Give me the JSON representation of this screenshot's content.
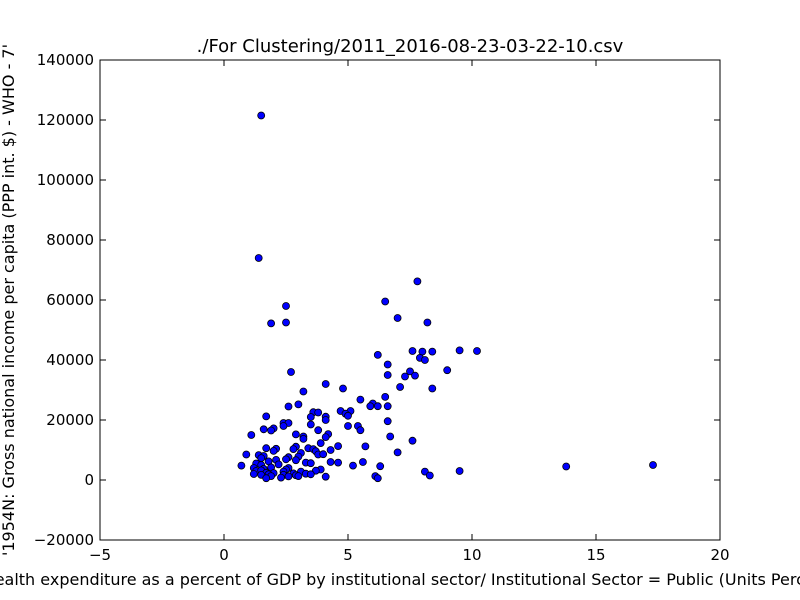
{
  "chart_data": {
    "type": "scatter",
    "title": "./For Clustering/2011_2016-08-23-03-22-10.csv",
    "xlabel": "Health expenditure as a percent of GDP by institutional sector/ Institutional Sector = Public (Units Percent)",
    "ylabel": "'1954N: Gross national income per capita (PPP int. $) - WHO - 7'",
    "xlim": [
      -5,
      20
    ],
    "ylim": [
      -20000,
      140000
    ],
    "xticks": [
      "−5",
      "0",
      "5",
      "10",
      "15",
      "20"
    ],
    "yticks": [
      "−20000",
      "0",
      "20000",
      "40000",
      "60000",
      "80000",
      "100000",
      "120000",
      "140000"
    ],
    "grid": false,
    "marker_color": "#0000ff",
    "points": [
      [
        1.5,
        121500
      ],
      [
        1.4,
        74000
      ],
      [
        7.8,
        66200
      ],
      [
        6.5,
        59500
      ],
      [
        2.5,
        58000
      ],
      [
        7.0,
        54000
      ],
      [
        8.2,
        52500
      ],
      [
        1.9,
        52200
      ],
      [
        2.5,
        52500
      ],
      [
        9.5,
        43200
      ],
      [
        10.2,
        43000
      ],
      [
        7.6,
        43000
      ],
      [
        8.0,
        42800
      ],
      [
        8.4,
        42800
      ],
      [
        6.2,
        41700
      ],
      [
        7.9,
        40700
      ],
      [
        8.1,
        40000
      ],
      [
        6.6,
        38500
      ],
      [
        9.0,
        36600
      ],
      [
        7.5,
        36200
      ],
      [
        2.7,
        36000
      ],
      [
        6.6,
        35000
      ],
      [
        7.3,
        34500
      ],
      [
        7.7,
        34800
      ],
      [
        4.1,
        32000
      ],
      [
        7.1,
        31000
      ],
      [
        8.4,
        30500
      ],
      [
        4.8,
        30500
      ],
      [
        3.2,
        29500
      ],
      [
        5.5,
        26800
      ],
      [
        6.0,
        25500
      ],
      [
        3.0,
        25200
      ],
      [
        6.2,
        24600
      ],
      [
        6.6,
        24600
      ],
      [
        2.6,
        24500
      ],
      [
        5.9,
        24600
      ],
      [
        6.5,
        27700
      ],
      [
        3.6,
        22600
      ],
      [
        3.8,
        22500
      ],
      [
        4.7,
        23000
      ],
      [
        5.1,
        23000
      ],
      [
        4.9,
        22100
      ],
      [
        5.0,
        21400
      ],
      [
        1.7,
        21200
      ],
      [
        3.5,
        21000
      ],
      [
        4.1,
        21100
      ],
      [
        4.1,
        20000
      ],
      [
        6.6,
        19600
      ],
      [
        2.4,
        19000
      ],
      [
        2.6,
        19000
      ],
      [
        3.5,
        18500
      ],
      [
        2.4,
        18000
      ],
      [
        5.4,
        18000
      ],
      [
        5.5,
        16600
      ],
      [
        5.0,
        18000
      ],
      [
        1.6,
        16900
      ],
      [
        2.0,
        17200
      ],
      [
        3.8,
        16600
      ],
      [
        1.9,
        16500
      ],
      [
        4.2,
        15300
      ],
      [
        2.9,
        15200
      ],
      [
        3.2,
        14500
      ],
      [
        4.1,
        14300
      ],
      [
        1.1,
        15000
      ],
      [
        6.7,
        14500
      ],
      [
        3.2,
        13700
      ],
      [
        7.6,
        13100
      ],
      [
        3.9,
        12300
      ],
      [
        4.6,
        11300
      ],
      [
        2.9,
        11100
      ],
      [
        5.7,
        11200
      ],
      [
        3.4,
        10600
      ],
      [
        3.6,
        10300
      ],
      [
        2.8,
        10300
      ],
      [
        1.7,
        10600
      ],
      [
        2.1,
        10400
      ],
      [
        4.3,
        10000
      ],
      [
        3.7,
        9600
      ],
      [
        2.0,
        9700
      ],
      [
        3.1,
        9000
      ],
      [
        7.0,
        9200
      ],
      [
        3.8,
        8500
      ],
      [
        4.0,
        8600
      ],
      [
        0.9,
        8500
      ],
      [
        1.4,
        8300
      ],
      [
        1.6,
        8000
      ],
      [
        2.6,
        7600
      ],
      [
        3.0,
        7800
      ],
      [
        1.5,
        7300
      ],
      [
        2.5,
        6900
      ],
      [
        2.1,
        6700
      ],
      [
        2.9,
        6600
      ],
      [
        1.8,
        6200
      ],
      [
        4.3,
        6000
      ],
      [
        3.3,
        5800
      ],
      [
        4.6,
        5800
      ],
      [
        5.6,
        6000
      ],
      [
        1.3,
        5500
      ],
      [
        1.5,
        5000
      ],
      [
        2.2,
        5200
      ],
      [
        3.5,
        5600
      ],
      [
        0.7,
        4800
      ],
      [
        5.2,
        4800
      ],
      [
        6.3,
        4600
      ],
      [
        13.8,
        4500
      ],
      [
        17.3,
        5000
      ],
      [
        1.2,
        4000
      ],
      [
        1.9,
        4200
      ],
      [
        2.6,
        4000
      ],
      [
        1.6,
        3700
      ],
      [
        2.5,
        3500
      ],
      [
        3.9,
        3500
      ],
      [
        1.3,
        3000
      ],
      [
        1.5,
        3200
      ],
      [
        2.4,
        2800
      ],
      [
        3.1,
        2800
      ],
      [
        3.7,
        3100
      ],
      [
        8.1,
        2800
      ],
      [
        9.5,
        3000
      ],
      [
        1.7,
        2400
      ],
      [
        2.0,
        2300
      ],
      [
        2.8,
        2200
      ],
      [
        3.3,
        2100
      ],
      [
        1.2,
        2000
      ],
      [
        1.5,
        1700
      ],
      [
        1.8,
        1900
      ],
      [
        2.4,
        1700
      ],
      [
        2.9,
        1600
      ],
      [
        3.5,
        1900
      ],
      [
        1.9,
        1300
      ],
      [
        2.6,
        1200
      ],
      [
        3.0,
        1300
      ],
      [
        4.1,
        1100
      ],
      [
        6.1,
        1300
      ],
      [
        8.3,
        1500
      ],
      [
        1.7,
        600
      ],
      [
        2.3,
        800
      ],
      [
        6.2,
        600
      ]
    ]
  }
}
